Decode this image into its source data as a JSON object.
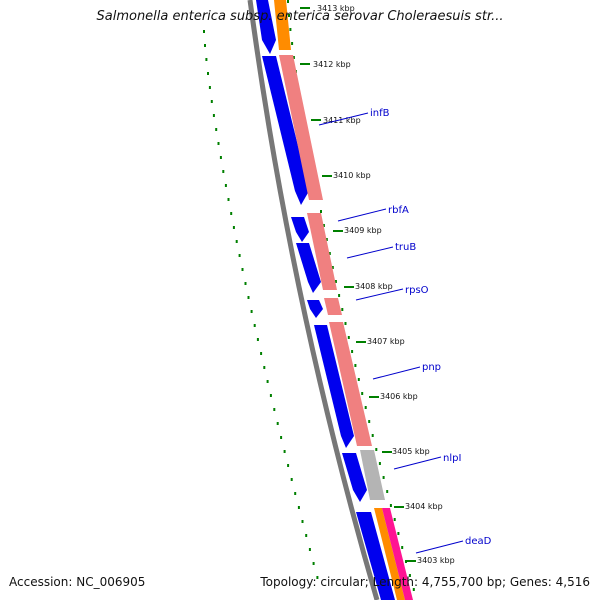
{
  "map": {
    "title": "Salmonella enterica subsp. enterica serovar Choleraesuis str...",
    "accession": "Accession: NC_006905",
    "summary": "Topology: circular; Length: 4,755,700 bp; Genes: 4,516"
  },
  "colors": {
    "forward_cds": "#0000ee",
    "reverse_feature": "#f08080",
    "backbone": "#777777",
    "tick_green": "#008000",
    "label_blue": "#0000cc",
    "orange_feature": "#ff8c00",
    "gray_feature": "#b4b4b4",
    "magenta_feature": "#ff1493"
  },
  "ticks": [
    {
      "label": "3413 kbp"
    },
    {
      "label": "3412 kbp"
    },
    {
      "label": "3411 kbp"
    },
    {
      "label": "3410 kbp"
    },
    {
      "label": "3409 kbp"
    },
    {
      "label": "3408 kbp"
    },
    {
      "label": "3407 kbp"
    },
    {
      "label": "3406 kbp"
    },
    {
      "label": "3405 kbp"
    },
    {
      "label": "3404 kbp"
    },
    {
      "label": "3403 kbp"
    }
  ],
  "genes": [
    {
      "name": "infB"
    },
    {
      "name": "rbfA"
    },
    {
      "name": "truB"
    },
    {
      "name": "rpsO"
    },
    {
      "name": "pnp"
    },
    {
      "name": "nlpI"
    },
    {
      "name": "deaD"
    }
  ]
}
